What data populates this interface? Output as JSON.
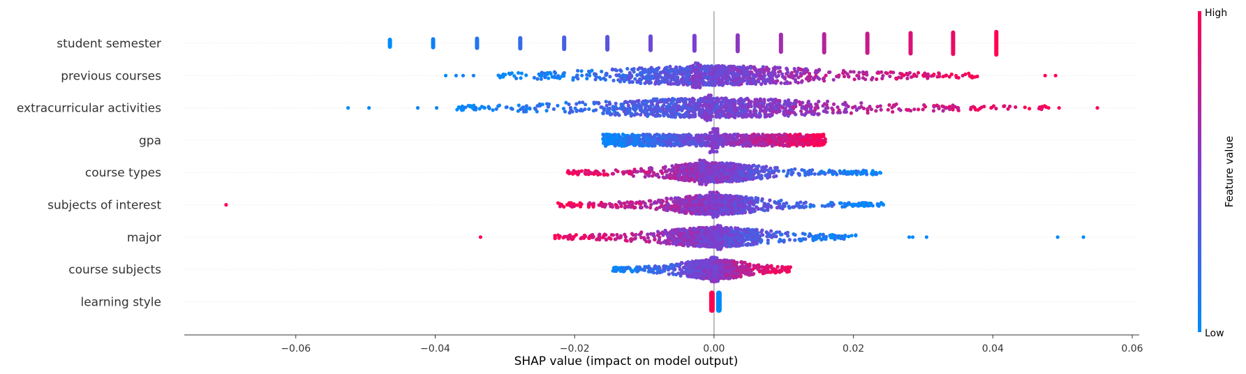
{
  "chart_data": {
    "type": "scatter",
    "subtype": "shap-beeswarm",
    "xlabel": "SHAP value (impact on model output)",
    "xlim": [
      -0.076,
      0.061
    ],
    "xticks": [
      -0.06,
      -0.04,
      -0.02,
      0.0,
      0.02,
      0.04,
      0.06
    ],
    "xtick_labels": [
      "−0.06",
      "−0.04",
      "−0.02",
      "0.00",
      "0.02",
      "0.04",
      "0.06"
    ],
    "grid": false,
    "colorbar": {
      "title": "Feature value",
      "high_label": "High",
      "low_label": "Low",
      "low_color": "#008bfb",
      "high_color": "#ff0052"
    },
    "features": [
      {
        "name": "student semester",
        "mode": "discrete",
        "groups": [
          {
            "x": -0.0465,
            "v": 0.0
          },
          {
            "x": -0.0403,
            "v": 0.07
          },
          {
            "x": -0.034,
            "v": 0.14
          },
          {
            "x": -0.0278,
            "v": 0.21
          },
          {
            "x": -0.0215,
            "v": 0.29
          },
          {
            "x": -0.0153,
            "v": 0.36
          },
          {
            "x": -0.0091,
            "v": 0.43
          },
          {
            "x": -0.0028,
            "v": 0.5
          },
          {
            "x": 0.0034,
            "v": 0.57
          },
          {
            "x": 0.0096,
            "v": 0.64
          },
          {
            "x": 0.0158,
            "v": 0.71
          },
          {
            "x": 0.022,
            "v": 0.79
          },
          {
            "x": 0.0282,
            "v": 0.86
          },
          {
            "x": 0.0343,
            "v": 0.93
          },
          {
            "x": 0.0405,
            "v": 1.0
          }
        ],
        "range": [
          -0.0465,
          0.0405
        ],
        "direction": 1,
        "spread": 0.012
      },
      {
        "name": "previous courses",
        "mode": "continuous",
        "range": [
          -0.031,
          0.0385
        ],
        "direction": 1,
        "spread": 0.016,
        "outliers": [
          {
            "x": -0.0385,
            "v": 0.0
          },
          {
            "x": -0.037,
            "v": 0.05
          },
          {
            "x": -0.036,
            "v": 0.04
          },
          {
            "x": -0.0345,
            "v": 0.08
          },
          {
            "x": 0.0475,
            "v": 1.0
          },
          {
            "x": 0.049,
            "v": 1.0
          }
        ],
        "spike": -0.0025
      },
      {
        "name": "extracurricular activities",
        "mode": "continuous",
        "range": [
          -0.037,
          0.048
        ],
        "direction": 1,
        "spread": 0.019,
        "outliers": [
          {
            "x": -0.0525,
            "v": 0.0
          },
          {
            "x": -0.0495,
            "v": 0.03
          },
          {
            "x": -0.0425,
            "v": 0.05
          },
          {
            "x": -0.0398,
            "v": 0.06
          },
          {
            "x": 0.048,
            "v": 0.98
          },
          {
            "x": 0.0495,
            "v": 1.0
          },
          {
            "x": 0.055,
            "v": 1.0
          }
        ],
        "spike": -0.001
      },
      {
        "name": "gpa",
        "mode": "continuous",
        "range": [
          -0.016,
          0.016
        ],
        "direction": 1,
        "spread": 0.045,
        "uniform": true,
        "outliers": [],
        "spike": 0.0
      },
      {
        "name": "course types",
        "mode": "continuous",
        "range": [
          -0.021,
          0.024
        ],
        "direction": -1,
        "spread": 0.0075,
        "outliers": [
          {
            "x": 0.02,
            "v": 0.0
          },
          {
            "x": 0.0215,
            "v": 0.02
          },
          {
            "x": 0.0238,
            "v": 0.0
          },
          {
            "x": -0.021,
            "v": 1.0
          }
        ],
        "spike": -0.0015
      },
      {
        "name": "subjects of interest",
        "mode": "continuous",
        "range": [
          -0.023,
          0.0245
        ],
        "direction": -1,
        "spread": 0.0075,
        "outliers": [
          {
            "x": -0.07,
            "v": 1.0
          },
          {
            "x": 0.0198,
            "v": 0.02
          },
          {
            "x": 0.0243,
            "v": 0.0
          }
        ],
        "spike": 0.0
      },
      {
        "name": "major",
        "mode": "continuous",
        "range": [
          -0.023,
          0.0205
        ],
        "direction": -1,
        "spread": 0.0085,
        "outliers": [
          {
            "x": -0.0335,
            "v": 1.0
          },
          {
            "x": 0.028,
            "v": 0.02
          },
          {
            "x": 0.0285,
            "v": 0.0
          },
          {
            "x": 0.0305,
            "v": 0.03
          },
          {
            "x": 0.0493,
            "v": 0.0
          },
          {
            "x": 0.053,
            "v": 0.0
          }
        ],
        "spike": 0.0005
      },
      {
        "name": "course subjects",
        "mode": "continuous",
        "range": [
          -0.0145,
          0.011
        ],
        "direction": 1,
        "spread": 0.0055,
        "outliers": [],
        "spike": 0.0
      },
      {
        "name": "learning style",
        "mode": "binary",
        "groups": [
          {
            "x": -0.0003,
            "v": 1.0
          },
          {
            "x": 0.0007,
            "v": 0.0
          }
        ],
        "range": [
          -0.0008,
          0.0008
        ],
        "direction": -1,
        "spread": 0.001
      }
    ]
  }
}
